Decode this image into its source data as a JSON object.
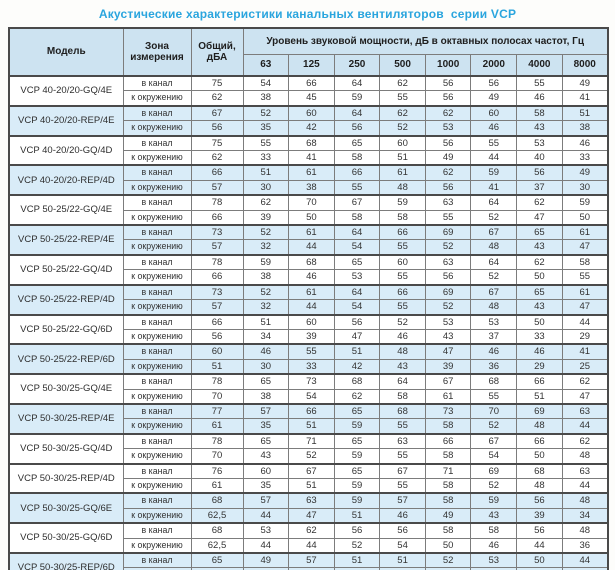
{
  "title": "Акустические характеристики канальных вентиляторов  серии VCP",
  "table": {
    "headers": {
      "model": "Модель",
      "zone": "Зона измерения",
      "total": "Общий, дБА",
      "spl": "Уровень звуковой мощности, дБ в октавных полосах частот, Гц",
      "frequencies": [
        "63",
        "125",
        "250",
        "500",
        "1000",
        "2000",
        "4000",
        "8000"
      ]
    },
    "groups": [
      {
        "model": "VCP 40-20/20-GQ/4E",
        "shaded": false,
        "rows": [
          {
            "zone": "в канал",
            "total": "75",
            "values": [
              54,
              66,
              64,
              62,
              56,
              56,
              55,
              49
            ]
          },
          {
            "zone": "к окружению",
            "total": "62",
            "values": [
              38,
              45,
              59,
              55,
              56,
              49,
              46,
              41
            ]
          }
        ]
      },
      {
        "model": "VCP 40-20/20-REP/4E",
        "shaded": true,
        "rows": [
          {
            "zone": "в канал",
            "total": "67",
            "values": [
              52,
              60,
              64,
              62,
              62,
              60,
              58,
              51
            ]
          },
          {
            "zone": "к окружению",
            "total": "56",
            "values": [
              35,
              42,
              56,
              52,
              53,
              46,
              43,
              38
            ]
          }
        ]
      },
      {
        "model": "VCP 40-20/20-GQ/4D",
        "shaded": false,
        "rows": [
          {
            "zone": "в канал",
            "total": "75",
            "values": [
              55,
              68,
              65,
              60,
              56,
              55,
              53,
              46
            ]
          },
          {
            "zone": "к окружению",
            "total": "62",
            "values": [
              33,
              41,
              58,
              51,
              49,
              44,
              40,
              33
            ]
          }
        ]
      },
      {
        "model": "VCP 40-20/20-REP/4D",
        "shaded": true,
        "rows": [
          {
            "zone": "в канал",
            "total": "66",
            "values": [
              51,
              61,
              66,
              61,
              62,
              59,
              56,
              49
            ]
          },
          {
            "zone": "к окружению",
            "total": "57",
            "values": [
              30,
              38,
              55,
              48,
              56,
              41,
              37,
              30
            ]
          }
        ]
      },
      {
        "model": "VCP 50-25/22-GQ/4E",
        "shaded": false,
        "rows": [
          {
            "zone": "в канал",
            "total": "78",
            "values": [
              62,
              70,
              67,
              59,
              63,
              64,
              62,
              59
            ]
          },
          {
            "zone": "к окружению",
            "total": "66",
            "values": [
              39,
              50,
              58,
              58,
              55,
              52,
              47,
              50
            ]
          }
        ]
      },
      {
        "model": "VCP 50-25/22-REP/4E",
        "shaded": true,
        "rows": [
          {
            "zone": "в канал",
            "total": "73",
            "values": [
              52,
              61,
              64,
              66,
              69,
              67,
              65,
              61
            ]
          },
          {
            "zone": "к окружению",
            "total": "57",
            "values": [
              32,
              44,
              54,
              55,
              52,
              48,
              43,
              47
            ]
          }
        ]
      },
      {
        "model": "VCP 50-25/22-GQ/4D",
        "shaded": false,
        "rows": [
          {
            "zone": "в канал",
            "total": "78",
            "values": [
              59,
              68,
              65,
              60,
              63,
              64,
              62,
              58
            ]
          },
          {
            "zone": "к окружению",
            "total": "66",
            "values": [
              38,
              46,
              53,
              55,
              56,
              52,
              50,
              55
            ]
          }
        ]
      },
      {
        "model": "VCP 50-25/22-REP/4D",
        "shaded": true,
        "rows": [
          {
            "zone": "в канал",
            "total": "73",
            "values": [
              52,
              61,
              64,
              66,
              69,
              67,
              65,
              61
            ]
          },
          {
            "zone": "к окружению",
            "total": "57",
            "values": [
              32,
              44,
              54,
              55,
              52,
              48,
              43,
              47
            ]
          }
        ]
      },
      {
        "model": "VCP 50-25/22-GQ/6D",
        "shaded": false,
        "rows": [
          {
            "zone": "в канал",
            "total": "66",
            "values": [
              51,
              60,
              56,
              52,
              53,
              53,
              50,
              44
            ]
          },
          {
            "zone": "к окружению",
            "total": "56",
            "values": [
              34,
              39,
              47,
              46,
              43,
              37,
              33,
              29
            ]
          }
        ]
      },
      {
        "model": "VCP 50-25/22-REP/6D",
        "shaded": true,
        "rows": [
          {
            "zone": "в канал",
            "total": "60",
            "values": [
              46,
              55,
              51,
              48,
              47,
              46,
              46,
              41
            ]
          },
          {
            "zone": "к окружению",
            "total": "51",
            "values": [
              30,
              33,
              42,
              43,
              39,
              36,
              29,
              25
            ]
          }
        ]
      },
      {
        "model": "VCP 50-30/25-GQ/4E",
        "shaded": false,
        "rows": [
          {
            "zone": "в канал",
            "total": "78",
            "values": [
              65,
              73,
              68,
              64,
              67,
              68,
              66,
              62
            ]
          },
          {
            "zone": "к окружению",
            "total": "70",
            "values": [
              38,
              54,
              62,
              58,
              61,
              55,
              51,
              47
            ]
          }
        ]
      },
      {
        "model": "VCP 50-30/25-REP/4E",
        "shaded": true,
        "rows": [
          {
            "zone": "в канал",
            "total": "77",
            "values": [
              57,
              66,
              65,
              68,
              73,
              70,
              69,
              63
            ]
          },
          {
            "zone": "к окружению",
            "total": "61",
            "values": [
              35,
              51,
              59,
              55,
              58,
              52,
              48,
              44
            ]
          }
        ]
      },
      {
        "model": "VCP 50-30/25-GQ/4D",
        "shaded": false,
        "rows": [
          {
            "zone": "в канал",
            "total": "78",
            "values": [
              65,
              71,
              65,
              63,
              66,
              67,
              66,
              62
            ]
          },
          {
            "zone": "к окружению",
            "total": "70",
            "values": [
              43,
              52,
              59,
              55,
              58,
              54,
              50,
              48
            ]
          }
        ]
      },
      {
        "model": "VCP 50-30/25-REP/4D",
        "shaded": false,
        "rows": [
          {
            "zone": "в канал",
            "total": "76",
            "values": [
              60,
              67,
              65,
              67,
              71,
              69,
              68,
              63
            ]
          },
          {
            "zone": "к окружению",
            "total": "61",
            "values": [
              35,
              51,
              59,
              55,
              58,
              52,
              48,
              44
            ]
          }
        ]
      },
      {
        "model": "VCP 50-30/25-GQ/6E",
        "shaded": true,
        "rows": [
          {
            "zone": "в канал",
            "total": "68",
            "values": [
              57,
              63,
              59,
              57,
              58,
              59,
              56,
              48
            ]
          },
          {
            "zone": "к окружению",
            "total": "62,5",
            "values": [
              44,
              47,
              51,
              46,
              49,
              43,
              39,
              34
            ]
          }
        ]
      },
      {
        "model": "VCP 50-30/25-GQ/6D",
        "shaded": false,
        "rows": [
          {
            "zone": "в канал",
            "total": "68",
            "values": [
              53,
              62,
              56,
              56,
              58,
              58,
              56,
              48
            ]
          },
          {
            "zone": "к окружению",
            "total": "62,5",
            "values": [
              44,
              44,
              52,
              54,
              50,
              46,
              44,
              36
            ]
          }
        ]
      },
      {
        "model": "VCP 50-30/25-REP/6D",
        "shaded": true,
        "rows": [
          {
            "zone": "в канал",
            "total": "65",
            "values": [
              49,
              57,
              51,
              51,
              52,
              53,
              50,
              44
            ]
          },
          {
            "zone": "к окружению",
            "total": "58",
            "values": [
              39,
              36,
              46,
              47,
              48,
              40,
              39,
              31
            ]
          }
        ]
      }
    ]
  },
  "colors": {
    "title_blue": "#2aa5de",
    "header_bg": "#cde3f1",
    "shaded_row_bg": "#d9ecf8",
    "border_dark": "#4a4a4a",
    "border_light": "#7c7c7c"
  }
}
